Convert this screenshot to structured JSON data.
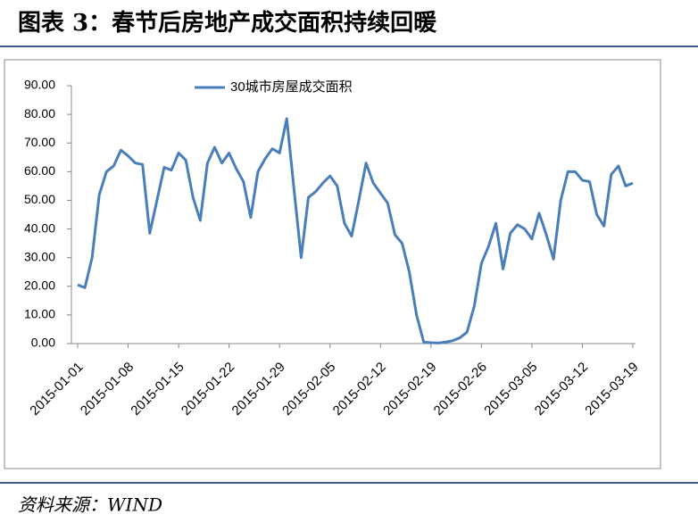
{
  "header": {
    "title": "图表 3：春节后房地产成交面积持续回暖"
  },
  "chart_data": {
    "type": "line",
    "categories": [
      "2015-01-01",
      null,
      null,
      null,
      null,
      null,
      null,
      "2015-01-08",
      null,
      null,
      null,
      null,
      null,
      null,
      "2015-01-15",
      null,
      null,
      null,
      null,
      null,
      null,
      "2015-01-22",
      null,
      null,
      null,
      null,
      null,
      null,
      "2015-01-29",
      null,
      null,
      null,
      null,
      null,
      null,
      "2015-02-05",
      null,
      null,
      null,
      null,
      null,
      null,
      "2015-02-12",
      null,
      null,
      null,
      null,
      null,
      null,
      "2015-02-19",
      null,
      null,
      null,
      null,
      null,
      null,
      "2015-02-26",
      null,
      null,
      null,
      null,
      null,
      null,
      "2015-03-05",
      null,
      null,
      null,
      null,
      null,
      null,
      "2015-03-12",
      null,
      null,
      null,
      null,
      null,
      null,
      "2015-03-19"
    ],
    "series": [
      {
        "name": "30城市房屋成交面积",
        "color": "#4a7ebb",
        "values": [
          20.5,
          19.5,
          30,
          52,
          60,
          62,
          67.5,
          65.5,
          63,
          62.5,
          38.5,
          50,
          61.5,
          60.5,
          66.5,
          64,
          51,
          43,
          63,
          68.5,
          63,
          66.5,
          61,
          56.5,
          44,
          60,
          64.5,
          68,
          66.5,
          78.5,
          54,
          30,
          51,
          53,
          56,
          58.5,
          55,
          42,
          37.5,
          50,
          63,
          56,
          52.5,
          49,
          38,
          35,
          25,
          10,
          0.5,
          0.3,
          0.2,
          0.5,
          1,
          2,
          4,
          13,
          28,
          34,
          42,
          26,
          38.5,
          41.5,
          40,
          36.5,
          45.5,
          38,
          29.5,
          50,
          60,
          60,
          57,
          56.5,
          45,
          41,
          59,
          62,
          55,
          56
        ]
      }
    ],
    "ylim": [
      0,
      90
    ],
    "yticks": [
      {
        "value": 0,
        "label": "0.00"
      },
      {
        "value": 10,
        "label": "10.00"
      },
      {
        "value": 20,
        "label": "20.00"
      },
      {
        "value": 30,
        "label": "30.00"
      },
      {
        "value": 40,
        "label": "40.00"
      },
      {
        "value": 50,
        "label": "50.00"
      },
      {
        "value": 60,
        "label": "60.00"
      },
      {
        "value": 70,
        "label": "70.00"
      },
      {
        "value": 80,
        "label": "80.00"
      },
      {
        "value": 90,
        "label": "90.00"
      }
    ],
    "legend": "top"
  },
  "footer": {
    "source": "资料来源：WIND"
  }
}
